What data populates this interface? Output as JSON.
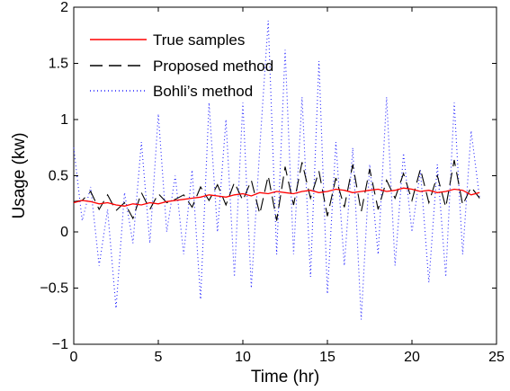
{
  "chart_data": {
    "type": "line",
    "title": "",
    "xlabel": "Time (hr)",
    "ylabel": "Usage (kw)",
    "xlim": [
      0,
      25
    ],
    "ylim": [
      -1,
      2
    ],
    "xticks": [
      0,
      5,
      10,
      15,
      20,
      25
    ],
    "xtick_labels": [
      "0",
      "5",
      "10",
      "15",
      "20",
      "25"
    ],
    "yticks": [
      -1,
      -0.5,
      0,
      0.5,
      1,
      1.5,
      2
    ],
    "ytick_labels": [
      "−1",
      "−0.5",
      "0",
      "0.5",
      "1",
      "1.5",
      "2"
    ],
    "grid": false,
    "legend_position": "top-left",
    "series": [
      {
        "name": "True samples",
        "color": "#ff0000",
        "style": "solid",
        "x": [
          0.0,
          0.5,
          1.0,
          1.5,
          2.0,
          2.5,
          3.0,
          3.5,
          4.0,
          4.5,
          5.0,
          5.5,
          6.0,
          6.5,
          7.0,
          7.5,
          8.0,
          8.5,
          9.0,
          9.5,
          10.0,
          10.5,
          11.0,
          11.5,
          12.0,
          12.5,
          13.0,
          13.5,
          14.0,
          14.5,
          15.0,
          15.5,
          16.0,
          16.5,
          17.0,
          17.5,
          18.0,
          18.5,
          19.0,
          19.5,
          20.0,
          20.5,
          21.0,
          21.5,
          22.0,
          22.5,
          23.0,
          23.5,
          24.0
        ],
        "y": [
          0.26,
          0.28,
          0.27,
          0.25,
          0.26,
          0.24,
          0.23,
          0.25,
          0.24,
          0.26,
          0.25,
          0.27,
          0.28,
          0.29,
          0.3,
          0.31,
          0.33,
          0.32,
          0.31,
          0.33,
          0.34,
          0.32,
          0.35,
          0.34,
          0.36,
          0.35,
          0.34,
          0.36,
          0.37,
          0.35,
          0.36,
          0.38,
          0.37,
          0.35,
          0.36,
          0.37,
          0.38,
          0.36,
          0.37,
          0.39,
          0.38,
          0.36,
          0.37,
          0.35,
          0.36,
          0.38,
          0.37,
          0.33,
          0.35
        ]
      },
      {
        "name": "Proposed method",
        "color": "#000000",
        "style": "dashed",
        "x": [
          0.0,
          0.5,
          1.0,
          1.5,
          2.0,
          2.5,
          3.0,
          3.5,
          4.0,
          4.5,
          5.0,
          5.5,
          6.0,
          6.5,
          7.0,
          7.5,
          8.0,
          8.5,
          9.0,
          9.5,
          10.0,
          10.5,
          11.0,
          11.5,
          12.0,
          12.5,
          13.0,
          13.5,
          14.0,
          14.5,
          15.0,
          15.5,
          16.0,
          16.5,
          17.0,
          17.5,
          18.0,
          18.5,
          19.0,
          19.5,
          20.0,
          20.5,
          21.0,
          21.5,
          22.0,
          22.5,
          23.0,
          23.5,
          24.0
        ],
        "y": [
          0.27,
          0.28,
          0.36,
          0.2,
          0.33,
          0.19,
          0.26,
          0.12,
          0.35,
          0.2,
          0.34,
          0.26,
          0.29,
          0.33,
          0.22,
          0.4,
          0.28,
          0.42,
          0.24,
          0.44,
          0.28,
          0.46,
          0.16,
          0.5,
          0.1,
          0.58,
          0.24,
          0.62,
          0.3,
          0.54,
          0.14,
          0.48,
          0.22,
          0.6,
          0.18,
          0.56,
          0.2,
          0.46,
          0.3,
          0.52,
          0.28,
          0.56,
          0.26,
          0.5,
          0.22,
          0.64,
          0.24,
          0.4,
          0.3
        ]
      },
      {
        "name": "Bohli’s method",
        "color": "#2222ff",
        "style": "dotted",
        "x": [
          0.0,
          0.5,
          1.0,
          1.5,
          2.0,
          2.5,
          3.0,
          3.5,
          4.0,
          4.5,
          5.0,
          5.5,
          6.0,
          6.5,
          7.0,
          7.5,
          8.0,
          8.5,
          9.0,
          9.5,
          10.0,
          10.5,
          11.0,
          11.5,
          12.0,
          12.5,
          13.0,
          13.5,
          14.0,
          14.5,
          15.0,
          15.5,
          16.0,
          16.5,
          17.0,
          17.5,
          18.0,
          18.5,
          19.0,
          19.5,
          20.0,
          20.5,
          21.0,
          21.5,
          22.0,
          22.5,
          23.0,
          23.5,
          24.0
        ],
        "y": [
          0.75,
          0.1,
          0.4,
          -0.3,
          0.2,
          -0.68,
          0.35,
          -0.1,
          0.8,
          -0.1,
          1.05,
          0.0,
          0.5,
          -0.2,
          0.55,
          -0.6,
          1.15,
          0.0,
          1.0,
          -0.4,
          1.15,
          -0.5,
          0.75,
          1.88,
          -0.2,
          1.62,
          -0.2,
          1.2,
          -0.4,
          1.52,
          -0.55,
          0.8,
          -0.3,
          0.75,
          -0.78,
          0.6,
          -0.2,
          1.2,
          -0.3,
          0.7,
          0.0,
          0.55,
          -0.45,
          0.6,
          -0.4,
          1.15,
          -0.2,
          0.9,
          0.3
        ]
      }
    ]
  }
}
